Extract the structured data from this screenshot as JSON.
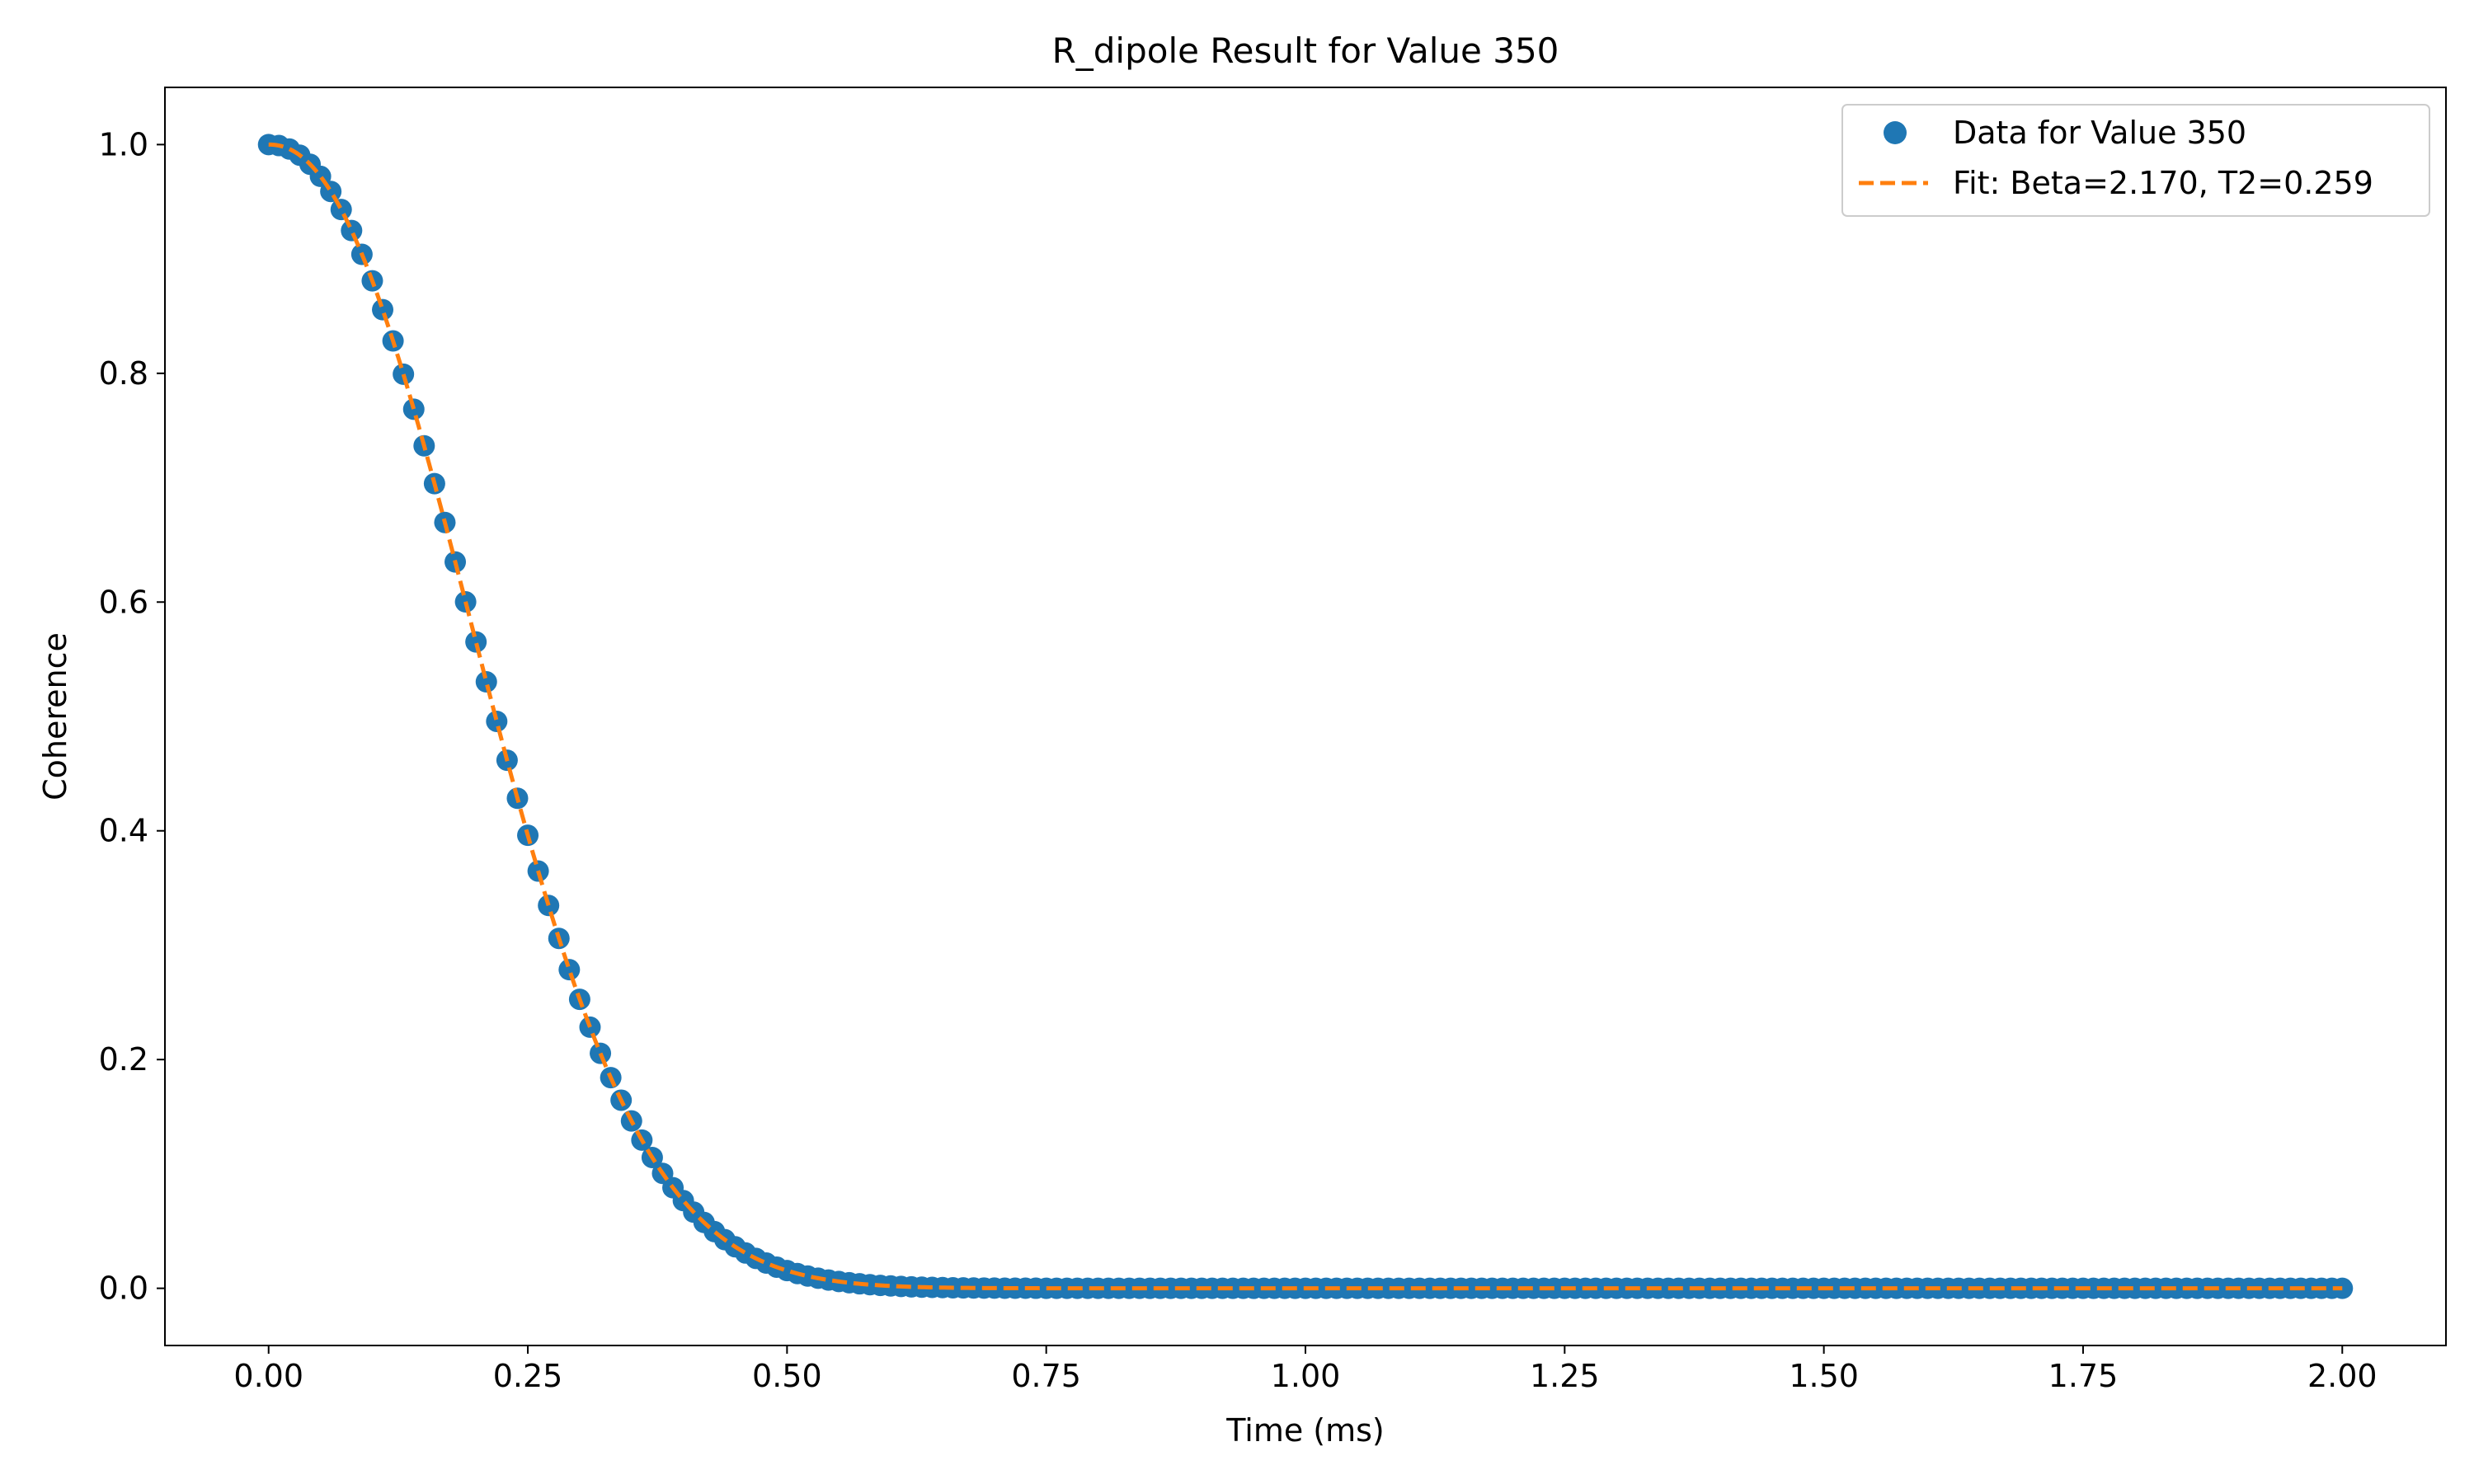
{
  "chart_data": {
    "type": "scatter",
    "title": "R_dipole Result for Value 350",
    "xlabel": "Time (ms)",
    "ylabel": "Coherence",
    "xlim": [
      -0.1,
      2.1
    ],
    "ylim": [
      -0.05,
      1.05
    ],
    "xticks": [
      0.0,
      0.25,
      0.5,
      0.75,
      1.0,
      1.25,
      1.5,
      1.75,
      2.0
    ],
    "xtick_labels": [
      "0.00",
      "0.25",
      "0.50",
      "0.75",
      "1.00",
      "1.25",
      "1.50",
      "1.75",
      "2.00"
    ],
    "yticks": [
      0.0,
      0.2,
      0.4,
      0.6,
      0.8,
      1.0
    ],
    "ytick_labels": [
      "0.0",
      "0.2",
      "0.4",
      "0.6",
      "0.8",
      "1.0"
    ],
    "grid": false,
    "legend_position": "top-right",
    "series": [
      {
        "name": "Data for Value 350",
        "kind": "scatter",
        "color": "#1f77b4",
        "x_start": 0.0,
        "x_end": 2.0,
        "x_step": 0.01,
        "model": "exp(-(t/T2)^Beta)",
        "params": {
          "Beta": 2.17,
          "T2": 0.259
        }
      },
      {
        "name": "Fit: Beta=2.170, T2=0.259",
        "kind": "line",
        "style": "dashed",
        "color": "#ff7f0e",
        "x_start": 0.0,
        "x_end": 2.0,
        "model": "exp(-(t/T2)^Beta)",
        "params": {
          "Beta": 2.17,
          "T2": 0.259
        }
      }
    ]
  }
}
